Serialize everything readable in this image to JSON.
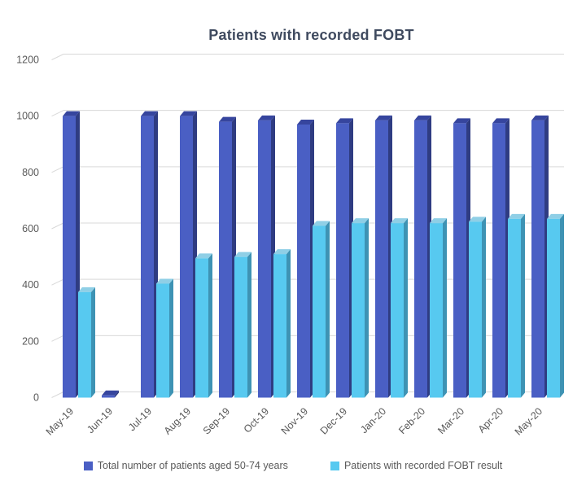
{
  "chart_data": {
    "type": "bar",
    "effect": "3d-clustered-column",
    "title": "Patients with recorded FOBT",
    "categories": [
      "May-19",
      "Jun-19",
      "Jul-19",
      "Aug-19",
      "Sep-19",
      "Oct-19",
      "Nov-19",
      "Dec-19",
      "Jan-20",
      "Feb-20",
      "Mar-20",
      "Apr-20",
      "May-20"
    ],
    "series": [
      {
        "name": "Total number of patients aged 50-74 years",
        "color": "#4A5FC4",
        "side_color": "#2F3C82",
        "top_color": "#36459E",
        "values": [
          1000,
          8,
          1000,
          1000,
          980,
          985,
          970,
          975,
          985,
          985,
          975,
          975,
          985
        ]
      },
      {
        "name": "Patients with recorded FOBT result",
        "color": "#57C9F0",
        "side_color": "#3E93B4",
        "top_color": "#8FCFE6",
        "values": [
          375,
          0,
          405,
          495,
          500,
          510,
          610,
          620,
          620,
          620,
          625,
          635,
          635
        ]
      }
    ],
    "ylim": [
      0,
      1200
    ],
    "yticks": [
      0,
      200,
      400,
      600,
      800,
      1000,
      1200
    ],
    "grid": true,
    "legend_position": "bottom"
  },
  "colors": {
    "background": "#FFFFFF",
    "gridline": "#D9D9D9",
    "axis_text": "#595959",
    "title_text": "#3F4A5F"
  }
}
